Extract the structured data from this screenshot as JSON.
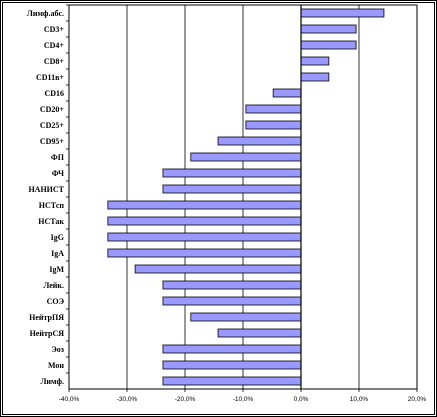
{
  "chart_data": {
    "type": "bar",
    "orientation": "horizontal",
    "categories": [
      "Лимф.абс.",
      "CD3+",
      "CD4+",
      "CD8+",
      "CD11в+",
      "CD16",
      "CD20+",
      "CD25+",
      "CD95+",
      "ФП",
      "ФЧ",
      "НАНИСТ",
      "НСТсп",
      "НСТак",
      "IgG",
      "IgA",
      "IgM",
      "Лейк.",
      "СОЭ",
      "НейтрПЯ",
      "НейтрСЯ",
      "Эоз",
      "Мон",
      "Лимф."
    ],
    "values": [
      14.3,
      9.5,
      9.5,
      4.8,
      4.8,
      -4.8,
      -9.5,
      -9.5,
      -14.3,
      -19.0,
      -23.8,
      -23.8,
      -33.3,
      -33.3,
      -33.3,
      -33.3,
      -28.6,
      -23.8,
      -23.8,
      -19.0,
      -14.3,
      -23.8,
      -23.8,
      -23.8
    ],
    "x_ticks": [
      "-40,0%",
      "-30,0%",
      "-20,0%",
      "-10,0%",
      "0,0%",
      "10,0%",
      "20,0%"
    ],
    "xlim": [
      -40,
      20
    ],
    "grid": "vertical major gridlines",
    "legend": "none",
    "title": "",
    "xlabel": "",
    "ylabel": "",
    "colors": {
      "bar_fill": "#9999ff",
      "bar_stroke": "#000000",
      "frame": "#000000",
      "background": "#ffffff"
    }
  }
}
